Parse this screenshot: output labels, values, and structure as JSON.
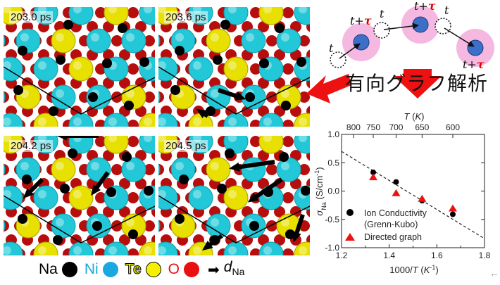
{
  "panels": [
    {
      "time_label": "203.0 ps"
    },
    {
      "time_label": "203.6 ps"
    },
    {
      "time_label": "204.2 ps"
    },
    {
      "time_label": "204.5 ps"
    }
  ],
  "legend": {
    "na_label": "Na",
    "ni_label": "Ni",
    "te_label": "Te",
    "o_label": "O",
    "d_label": "d",
    "d_subscript": "Na",
    "colors": {
      "na": "#000000",
      "ni": "#1aa8e0",
      "te": "#f5f000",
      "o": "#e81010",
      "arrow": "#000000"
    }
  },
  "schematic": {
    "t_label": "t",
    "t_tau_prefix": "t+",
    "tau_symbol": "τ",
    "halo_color": "#f5b8e0",
    "node_color": "#3b6fc8",
    "tau_color": "#e00000"
  },
  "graph_title": "有向グラフ解析",
  "arrows": {
    "color": "#ee1111",
    "left_arrow": "pointing to simulation panels",
    "down_arrow": "pointing to chart"
  },
  "chart_data": {
    "type": "scatter",
    "title": "",
    "xlabel": "1000/T (K^-1)",
    "ylabel": "σNa (S/cm^-1)",
    "top_xlabel": "T (K)",
    "xlim": [
      1.2,
      1.8
    ],
    "ylim": [
      -1.0,
      1.0
    ],
    "x_ticks": [
      "1.2",
      "1.4",
      "1.6",
      "1.8"
    ],
    "x_ticks_values": [
      1.2,
      1.4,
      1.6,
      1.8
    ],
    "y_ticks": [
      "1.0",
      "0.5",
      "0.0",
      "-0.5",
      "-1.0"
    ],
    "y_ticks_values": [
      1.0,
      0.5,
      0.0,
      -0.5,
      -1.0
    ],
    "top_x_ticks": [
      "800",
      "750",
      "700",
      "650",
      "600"
    ],
    "top_x_ticks_positions": [
      1.25,
      1.333,
      1.429,
      1.538,
      1.667
    ],
    "grid": false,
    "legend_position": "lower left",
    "series": [
      {
        "name": "Ion Conductivity (Grenn-Kubo)",
        "legend_line1": "Ion Conductivity",
        "legend_line2": "(Grenn-Kubo)",
        "marker": "circle",
        "color": "#000000",
        "x": [
          1.333,
          1.429,
          1.538,
          1.667
        ],
        "y": [
          0.33,
          0.16,
          -0.17,
          -0.41
        ]
      },
      {
        "name": "Directed graph",
        "legend_line1": "Directed graph",
        "marker": "triangle",
        "color": "#ee1111",
        "x": [
          1.333,
          1.429,
          1.538,
          1.667
        ],
        "y": [
          0.24,
          -0.04,
          -0.14,
          -0.31
        ]
      }
    ],
    "fit_line": {
      "style": "dashed",
      "color": "#000000",
      "x": [
        1.2,
        1.8
      ],
      "y": [
        0.7,
        -0.84
      ]
    }
  }
}
